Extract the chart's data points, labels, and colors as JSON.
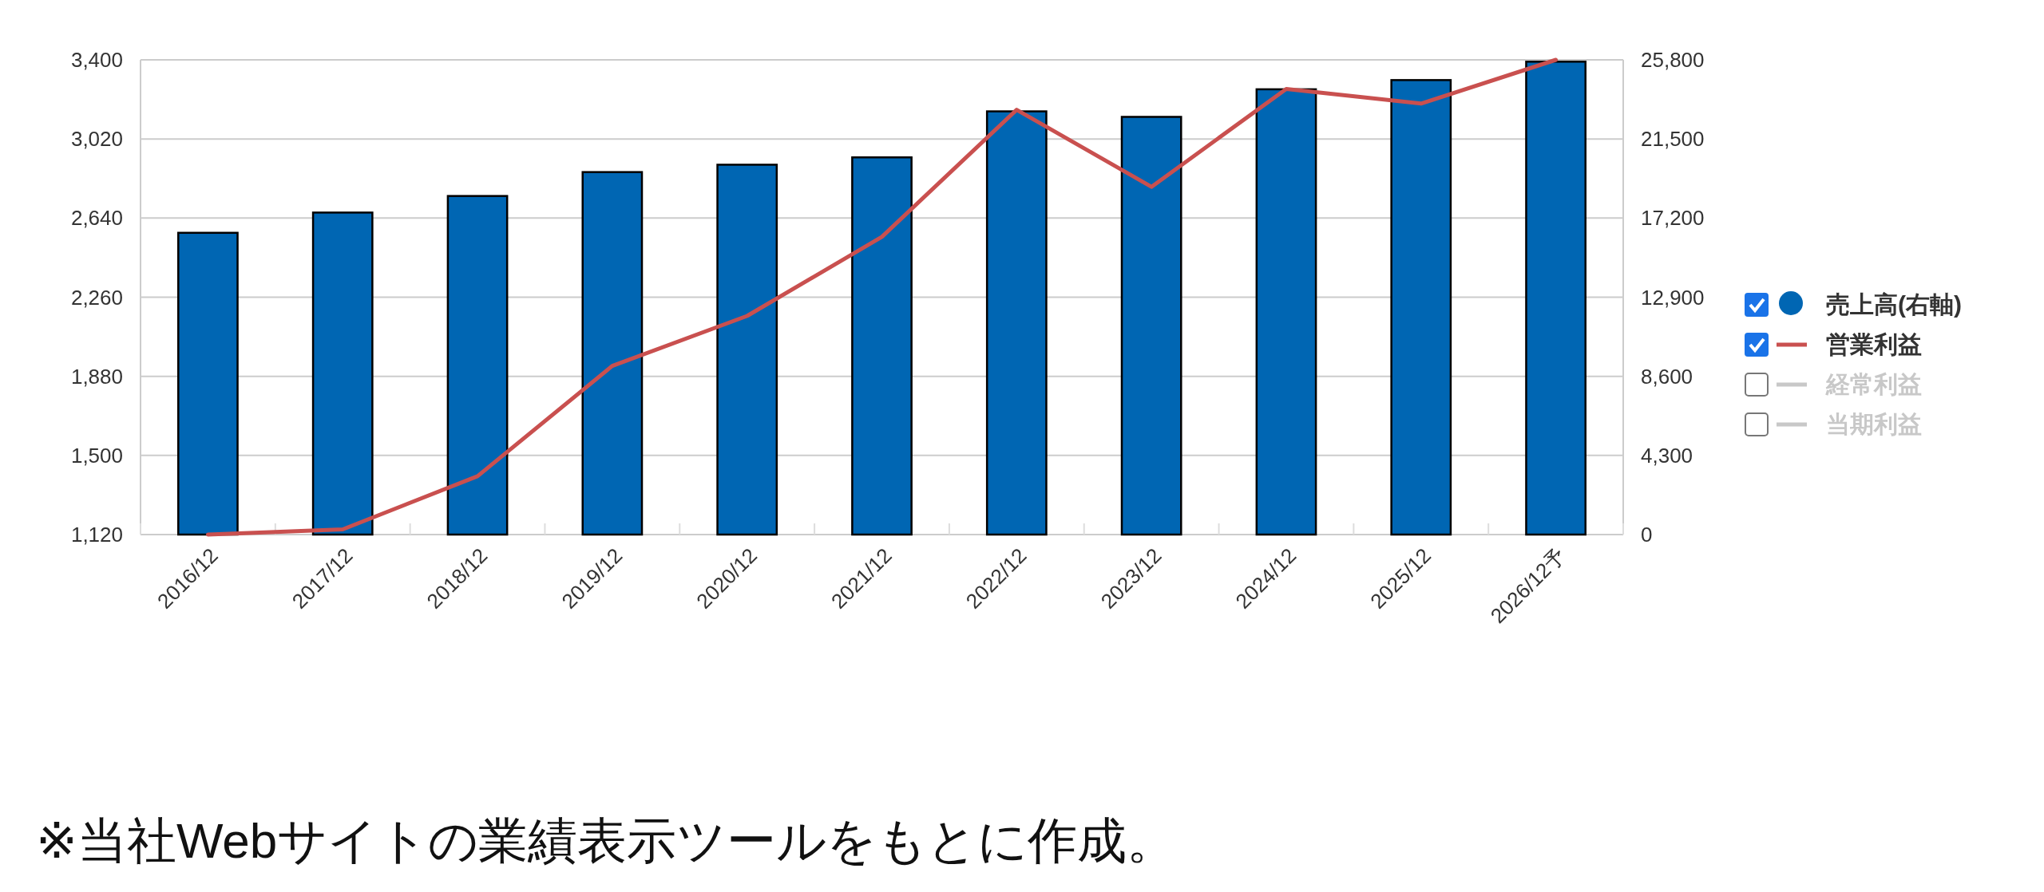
{
  "chart_data": {
    "type": "bar",
    "categories": [
      "2016/12",
      "2017/12",
      "2018/12",
      "2019/12",
      "2020/12",
      "2021/12",
      "2022/12",
      "2023/12",
      "2024/12",
      "2025/12",
      "2026/12予"
    ],
    "series": [
      {
        "name": "売上高(右軸)",
        "axis": "y2",
        "color": "#0066b3",
        "values": [
          16400,
          17500,
          18400,
          19700,
          20100,
          20500,
          23000,
          22700,
          24200,
          24700,
          25700
        ]
      },
      {
        "name": "営業利益",
        "type": "line",
        "axis": "y",
        "color": "#c9504f",
        "values": [
          1120,
          1145,
          1400,
          1930,
          2170,
          2550,
          3160,
          2790,
          3260,
          3190,
          3400
        ]
      },
      {
        "name": "経常利益",
        "type": "line",
        "axis": "y",
        "color": "#c8c8c8",
        "values": [
          null,
          null,
          null,
          null,
          null,
          null,
          null,
          null,
          null,
          null,
          null
        ]
      },
      {
        "name": "当期利益",
        "type": "line",
        "axis": "y",
        "color": "#c8c8c8",
        "values": [
          null,
          null,
          null,
          null,
          null,
          null,
          null,
          null,
          null,
          null,
          null
        ]
      }
    ],
    "ylim": [
      1120,
      3400
    ],
    "yticks": [
      {
        "value": 1120,
        "label": "1,120"
      },
      {
        "value": 1500,
        "label": "1,500"
      },
      {
        "value": 1880,
        "label": "1,880"
      },
      {
        "value": 2260,
        "label": "2,260"
      },
      {
        "value": 2640,
        "label": "2,640"
      },
      {
        "value": 3020,
        "label": "3,020"
      },
      {
        "value": 3400,
        "label": "3,400"
      }
    ],
    "y2lim": [
      0,
      25800
    ],
    "y2ticks": [
      0,
      {
        "value": 4300,
        "label": "4,300"
      },
      {
        "value": 8600,
        "label": "8,600"
      },
      {
        "value": 12900,
        "label": "12,900"
      },
      {
        "value": 17200,
        "label": "17,200"
      },
      {
        "value": 21500,
        "label": "21,500"
      },
      {
        "value": 25800,
        "label": "25,800"
      }
    ],
    "grid": "y",
    "legend": "right",
    "annotations": [
      "※当社Webサイトの業績表示ツールをもとに作成。"
    ]
  }
}
